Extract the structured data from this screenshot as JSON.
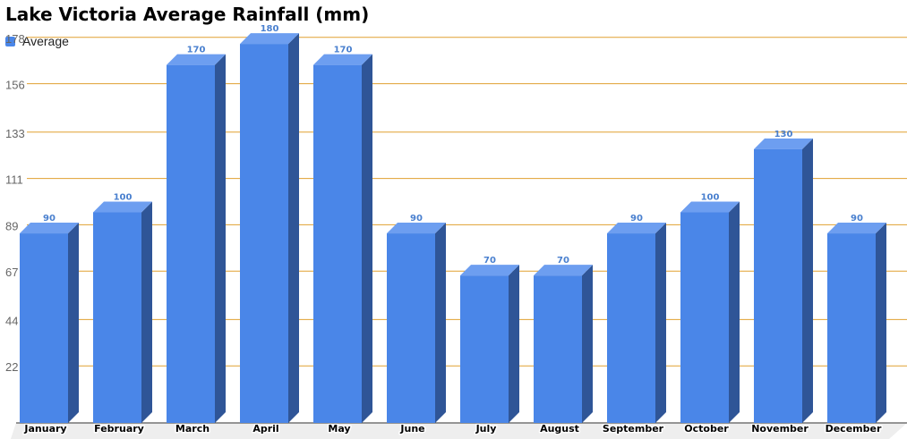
{
  "chart_data": {
    "type": "bar",
    "title": "Lake Victoria Average Rainfall (mm)",
    "xlabel": "",
    "ylabel": "",
    "categories": [
      "January",
      "February",
      "March",
      "April",
      "May",
      "June",
      "July",
      "August",
      "September",
      "October",
      "November",
      "December"
    ],
    "series": [
      {
        "name": "Average",
        "values": [
          90,
          100,
          170,
          180,
          170,
          90,
          70,
          70,
          90,
          100,
          130,
          90
        ],
        "color": "#4a86e8",
        "side_color": "#2f5597",
        "top_color": "#6d9ef0"
      }
    ],
    "y_ticks": [
      22,
      44,
      67,
      89,
      111,
      133,
      156,
      178
    ],
    "ylim": [
      0,
      200
    ],
    "grid": true,
    "grid_color": "#e0a030",
    "legend_position": "top-left",
    "data_label_color": "#4a80cf"
  }
}
